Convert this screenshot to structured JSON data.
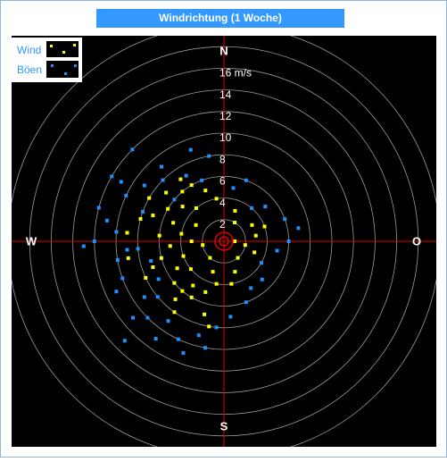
{
  "chart_data": {
    "type": "polar-scatter",
    "title": "Windrichtung (1 Woche)",
    "directions": [
      "N",
      "O",
      "S",
      "W"
    ],
    "rlim": [
      0,
      20
    ],
    "rticks": [
      2,
      4,
      6,
      8,
      10,
      12,
      14,
      {
        "value": 16,
        "label": "16 m/s"
      },
      {
        "value": 18,
        "label": null
      },
      {
        "value": 20,
        "label": null
      }
    ],
    "series": [
      {
        "name": "Böen",
        "color": "#1e90ff",
        "theta": [
          275,
          280,
          265,
          285,
          295,
          305,
          315,
          300,
          330,
          340,
          320,
          250,
          245,
          235,
          225,
          215,
          205,
          195,
          200,
          185,
          190,
          175,
          160,
          150,
          315,
          70,
          80,
          90,
          100,
          50,
          40,
          20,
          10,
          350,
          340,
          255,
          265,
          270,
          260,
          230,
          225,
          215,
          300,
          120,
          135,
          240,
          290,
          310,
          230,
          268
        ],
        "r": [
          10,
          11,
          9,
          12,
          10,
          9,
          8,
          11,
          7,
          6,
          9,
          10,
          11,
          9,
          10,
          11,
          10,
          9,
          11,
          8,
          10,
          7,
          6,
          5,
          12,
          6,
          7,
          6,
          5,
          5,
          4,
          6,
          5,
          8,
          9,
          7,
          8,
          12,
          10,
          8,
          13,
          9,
          12,
          4,
          5,
          7,
          8,
          6,
          11,
          13
        ]
      },
      {
        "name": "Wind",
        "color": "#ffff00",
        "theta": [
          270,
          280,
          290,
          300,
          310,
          320,
          320,
          310,
          300,
          260,
          250,
          240,
          230,
          220,
          215,
          210,
          200,
          195,
          190,
          190,
          200,
          220,
          60,
          70,
          80,
          100,
          110,
          90,
          30,
          20,
          350,
          340,
          330,
          325,
          300,
          290,
          275,
          265,
          285,
          275,
          230,
          215,
          220,
          160,
          170,
          140,
          250,
          255,
          245,
          260
        ],
        "r": [
          3,
          4,
          5,
          6,
          5,
          4,
          6,
          7,
          3,
          2,
          4,
          5,
          6,
          7,
          8,
          6,
          5,
          7,
          8,
          4,
          3,
          2,
          3,
          4,
          3,
          2,
          3,
          1,
          2,
          3,
          4,
          5,
          6,
          7,
          8,
          7,
          6,
          5,
          8,
          9,
          4,
          5,
          6,
          3,
          4,
          2,
          7,
          6,
          8,
          9
        ]
      }
    ]
  }
}
